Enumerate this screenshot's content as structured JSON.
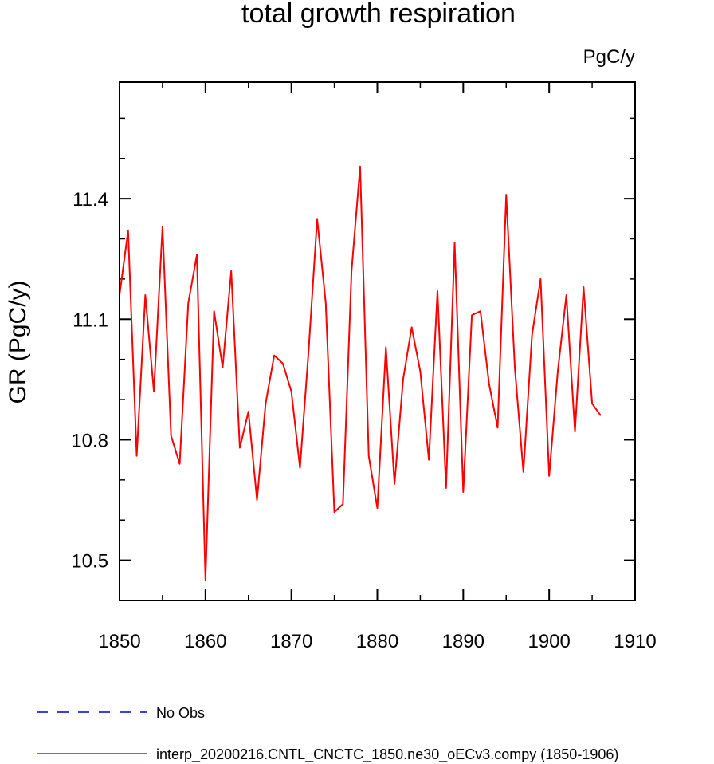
{
  "chart_data": {
    "type": "line",
    "title": "total growth respiration",
    "units_label": "PgC/y",
    "ylabel": "GR  (PgC/y)",
    "xlabel": "",
    "xlim": [
      1850,
      1910
    ],
    "ylim": [
      10.4,
      11.69
    ],
    "x_ticks": [
      1850,
      1860,
      1870,
      1880,
      1890,
      1900,
      1910
    ],
    "y_ticks": [
      10.5,
      10.8,
      11.1,
      11.4
    ],
    "y_tick_labels": [
      "10.5",
      "10.8",
      "11.1",
      "11.4"
    ],
    "y_minor_step": 0.1,
    "x_minor_step": 5,
    "grid": false,
    "legend_position": "bottom-left, below plot",
    "series": [
      {
        "name": "interp_20200216.CNTL_CNCTC_1850.ne30_oECv3.compy (1850-1906)",
        "color": "#ff0000",
        "style": "solid",
        "x": [
          1850,
          1851,
          1852,
          1853,
          1854,
          1855,
          1856,
          1857,
          1858,
          1859,
          1860,
          1861,
          1862,
          1863,
          1864,
          1865,
          1866,
          1867,
          1868,
          1869,
          1870,
          1871,
          1872,
          1873,
          1874,
          1875,
          1876,
          1877,
          1878,
          1879,
          1880,
          1881,
          1882,
          1883,
          1884,
          1885,
          1886,
          1887,
          1888,
          1889,
          1890,
          1891,
          1892,
          1893,
          1894,
          1895,
          1896,
          1897,
          1898,
          1899,
          1900,
          1901,
          1902,
          1903,
          1904,
          1905,
          1906
        ],
        "values": [
          11.16,
          11.32,
          10.76,
          11.16,
          10.92,
          11.33,
          10.81,
          10.74,
          11.14,
          11.26,
          10.45,
          11.12,
          10.98,
          11.22,
          10.78,
          10.87,
          10.65,
          10.89,
          11.01,
          10.99,
          10.92,
          10.73,
          11.02,
          11.35,
          11.14,
          10.62,
          10.64,
          11.22,
          11.48,
          10.76,
          10.63,
          11.03,
          10.69,
          10.95,
          11.08,
          10.97,
          10.75,
          11.17,
          10.68,
          11.29,
          10.67,
          11.11,
          11.12,
          10.94,
          10.83,
          11.41,
          10.98,
          10.72,
          11.06,
          11.2,
          10.71,
          10.97,
          11.16,
          10.82,
          11.18,
          10.89,
          10.86
        ]
      },
      {
        "name": "No Obs",
        "color": "#0000cc",
        "style": "dashed",
        "x": [],
        "values": []
      }
    ]
  }
}
